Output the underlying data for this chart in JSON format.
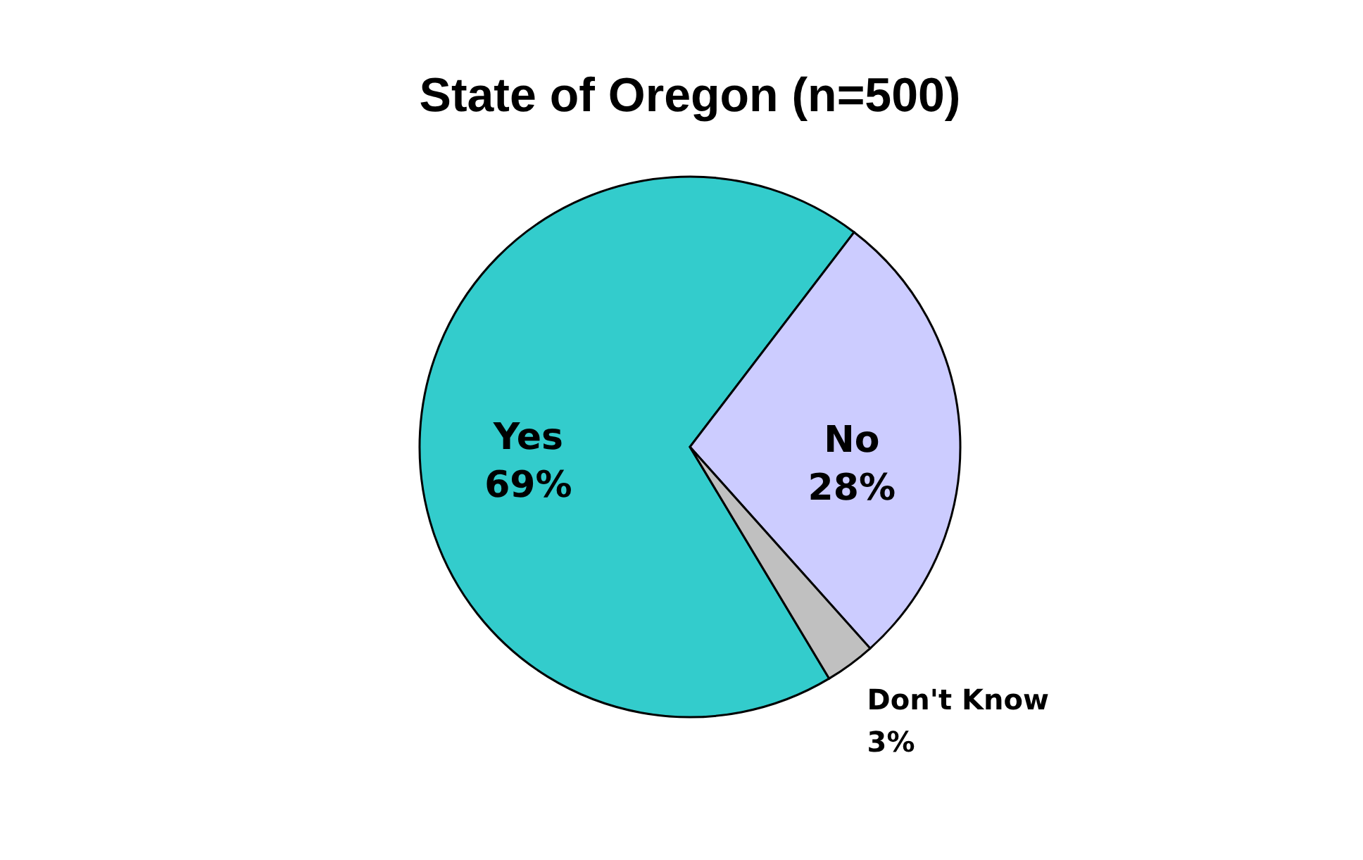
{
  "chart_data": {
    "type": "pie",
    "title": "State of Oregon (n=500)",
    "categories": [
      "Yes",
      "No",
      "Don't Know"
    ],
    "values": [
      69,
      28,
      3
    ],
    "value_labels": [
      "69%",
      "28%",
      "3%"
    ],
    "colors": [
      "#33cccc",
      "#ccccff",
      "#c0c0c0"
    ],
    "data_labels": true,
    "legend": false
  }
}
